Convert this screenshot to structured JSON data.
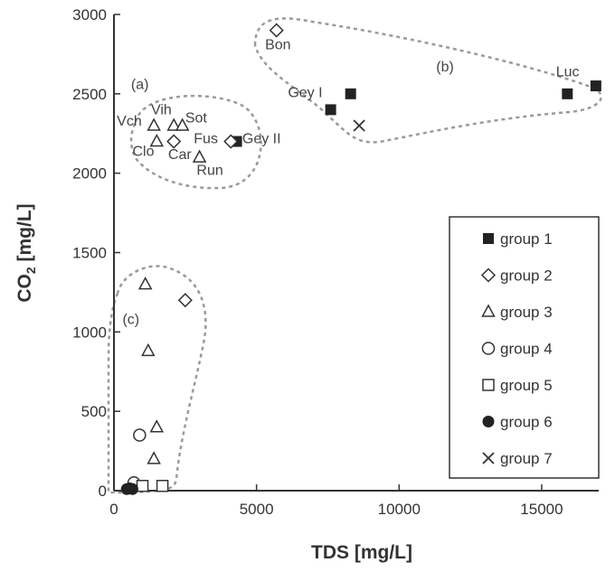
{
  "chart_data": {
    "type": "scatter",
    "xlabel": "TDS [mg/L]",
    "ylabel_main": "CO",
    "ylabel_sub": "2",
    "ylabel_tail": " [mg/L]",
    "xlim": [
      0,
      17000
    ],
    "ylim": [
      0,
      3000
    ],
    "xticks": [
      0,
      5000,
      10000,
      15000
    ],
    "yticks": [
      0,
      500,
      1000,
      1500,
      2000,
      2500,
      3000
    ],
    "grid": false,
    "legend_position": "bottom-right",
    "series": [
      {
        "name": "group 1",
        "marker": "filled-square",
        "points": [
          [
            4300,
            2200
          ],
          [
            7600,
            2400
          ],
          [
            8300,
            2500
          ],
          [
            15900,
            2500
          ],
          [
            16900,
            2550
          ]
        ]
      },
      {
        "name": "group 2",
        "marker": "diamond",
        "points": [
          [
            5700,
            2900
          ],
          [
            2100,
            2200
          ],
          [
            4100,
            2200
          ],
          [
            2500,
            1200
          ]
        ]
      },
      {
        "name": "group 3",
        "marker": "triangle",
        "points": [
          [
            1400,
            2300
          ],
          [
            2100,
            2300
          ],
          [
            2400,
            2300
          ],
          [
            1500,
            2200
          ],
          [
            3000,
            2100
          ],
          [
            1100,
            1300
          ],
          [
            1200,
            880
          ],
          [
            1500,
            400
          ],
          [
            1400,
            200
          ]
        ]
      },
      {
        "name": "group 4",
        "marker": "circle",
        "points": [
          [
            900,
            350
          ],
          [
            700,
            50
          ]
        ]
      },
      {
        "name": "group 5",
        "marker": "square",
        "points": [
          [
            1000,
            30
          ],
          [
            1700,
            30
          ]
        ]
      },
      {
        "name": "group 6",
        "marker": "filled-circle",
        "points": [
          [
            450,
            10
          ],
          [
            550,
            15
          ],
          [
            650,
            10
          ]
        ]
      },
      {
        "name": "group 7",
        "marker": "x",
        "points": [
          [
            8600,
            2300
          ]
        ]
      }
    ],
    "annotations": [
      {
        "text": "Bon",
        "x": 5300,
        "y": 2780
      },
      {
        "text": "Gey I",
        "x": 6100,
        "y": 2480
      },
      {
        "text": "Luc",
        "x": 15500,
        "y": 2610
      },
      {
        "text": "Vch",
        "x": 100,
        "y": 2300
      },
      {
        "text": "Vih",
        "x": 1300,
        "y": 2370
      },
      {
        "text": "Sot",
        "x": 2500,
        "y": 2320
      },
      {
        "text": "Fus",
        "x": 2800,
        "y": 2190
      },
      {
        "text": "Gey II",
        "x": 4500,
        "y": 2190
      },
      {
        "text": "Clo",
        "x": 650,
        "y": 2110
      },
      {
        "text": "Car",
        "x": 1900,
        "y": 2090
      },
      {
        "text": "Run",
        "x": 2900,
        "y": 1990
      }
    ],
    "regions": [
      {
        "text": "(a)",
        "x": 600,
        "y": 2530
      },
      {
        "text": "(b)",
        "x": 11300,
        "y": 2640
      },
      {
        "text": "(c)",
        "x": 300,
        "y": 1050
      }
    ]
  }
}
